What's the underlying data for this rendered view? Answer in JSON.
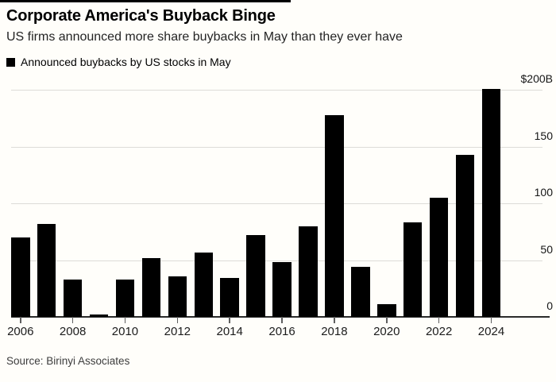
{
  "header": {
    "title": "Corporate America's Buyback Binge",
    "subtitle": "US firms announced more share buybacks in May than they ever have"
  },
  "legend": {
    "marker_color": "#000000",
    "label": "Announced buybacks by US stocks in May"
  },
  "source": {
    "label": "Source: Birinyi Associates"
  },
  "chart_data": {
    "type": "bar",
    "title": "Corporate America's Buyback Binge",
    "subtitle": "US firms announced more share buybacks in May than they ever have",
    "series_name": "Announced buybacks by US stocks in May",
    "categories": [
      2006,
      2007,
      2008,
      2009,
      2010,
      2011,
      2012,
      2013,
      2014,
      2015,
      2016,
      2017,
      2018,
      2019,
      2020,
      2021,
      2022,
      2023,
      2024
    ],
    "values": [
      70,
      82,
      33,
      2,
      33,
      52,
      36,
      57,
      34,
      72,
      48,
      80,
      178,
      44,
      11,
      83,
      105,
      143,
      201
    ],
    "unit": "$B",
    "ylim": [
      0,
      210
    ],
    "yticks": [
      0,
      50,
      100,
      150,
      200
    ],
    "ytick_labels": [
      "0",
      "50",
      "100",
      "150",
      "$200B"
    ],
    "xticks": [
      2006,
      2008,
      2010,
      2012,
      2014,
      2016,
      2018,
      2020,
      2022,
      2024
    ],
    "xtick_labels": [
      "2006",
      "2008",
      "2010",
      "2012",
      "2014",
      "2016",
      "2018",
      "2020",
      "2022",
      "2024"
    ],
    "grid": true,
    "grid_color": "#dddcd8",
    "axis_color": "#2b2b2b",
    "bar_color": "#000000",
    "value_axis_side": "right",
    "legend_position": "top-left"
  }
}
